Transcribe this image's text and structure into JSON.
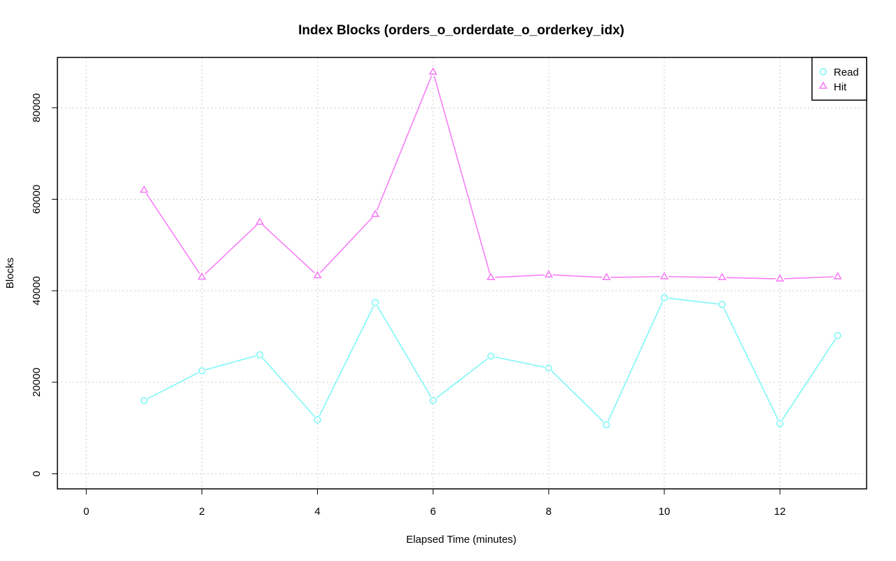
{
  "chart_data": {
    "type": "line",
    "title": "Index Blocks (orders_o_orderdate_o_orderkey_idx)",
    "xlabel": "Elapsed Time (minutes)",
    "ylabel": "Blocks",
    "xlim": [
      -0.5,
      13.5
    ],
    "ylim": [
      -3300,
      91000
    ],
    "xticks": [
      0,
      2,
      4,
      6,
      8,
      10,
      12
    ],
    "xtick_labels": [
      "0",
      "2",
      "4",
      "6",
      "8",
      "10",
      "12"
    ],
    "yticks": [
      0,
      20000,
      40000,
      60000,
      80000
    ],
    "ytick_labels": [
      "0",
      "20000",
      "40000",
      "60000",
      "80000"
    ],
    "grid": true,
    "legend_position": "top-right",
    "x": [
      1,
      2,
      3,
      4,
      5,
      6,
      7,
      8,
      9,
      10,
      11,
      12,
      13
    ],
    "series": [
      {
        "name": "Read",
        "color": "#7ff7f7",
        "marker": "circle",
        "values": [
          16000,
          22500,
          26000,
          11800,
          37400,
          16000,
          25700,
          23100,
          10700,
          38500,
          37000,
          11000,
          30200
        ]
      },
      {
        "name": "Hit",
        "color": "#f77ff7",
        "marker": "triangle",
        "values": [
          62000,
          43000,
          55000,
          43300,
          56700,
          87800,
          42900,
          43500,
          42900,
          43100,
          42900,
          42600,
          43100
        ]
      }
    ]
  }
}
